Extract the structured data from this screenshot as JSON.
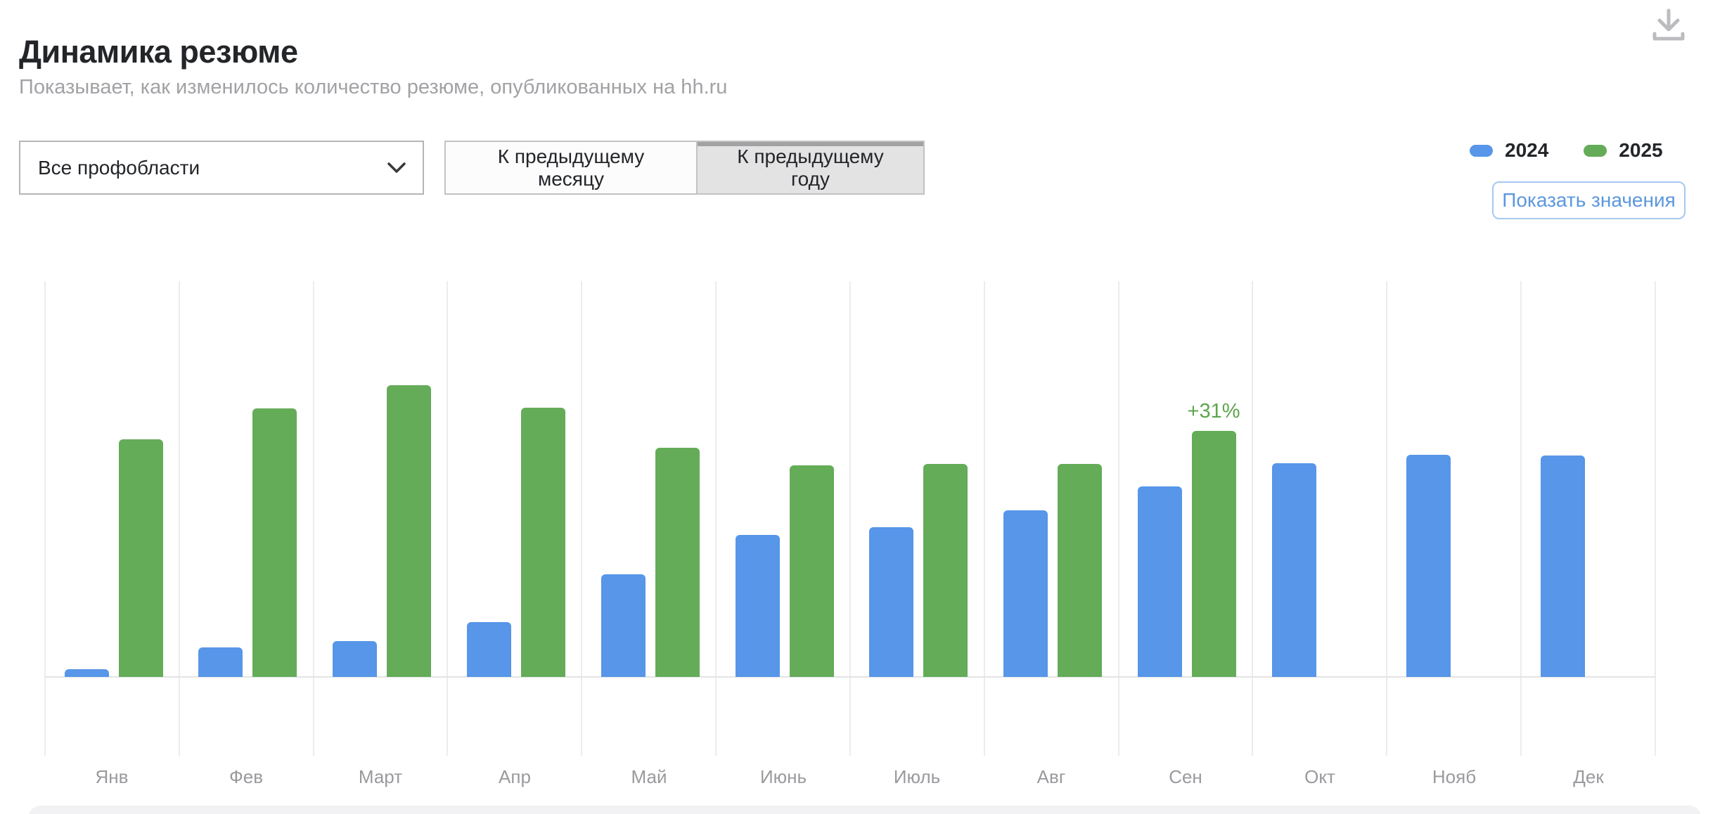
{
  "header": {
    "title": "Динамика резюме",
    "subtitle": "Показывает, как изменилось количество резюме, опубликованных на hh.ru"
  },
  "controls": {
    "profession_filter": {
      "value": "Все профобласти"
    },
    "comparison_toggle": {
      "options": [
        "К предыдущему месяцу",
        "К предыдущему году"
      ],
      "selected": "К предыдущему году"
    },
    "show_values_label": "Показать значения"
  },
  "legend": [
    {
      "label": "2024",
      "color": "#5796e8"
    },
    {
      "label": "2025",
      "color": "#64ac58"
    }
  ],
  "icons": {
    "download": "download-icon",
    "dropdown_chevron": "chevron-down-icon"
  },
  "colors": {
    "bar_2024": "#5796e8",
    "bar_2025": "#64ac58",
    "annotation_green": "#5ea54c",
    "gridline": "#ececee",
    "text_dark": "#232529",
    "text_gray": "#9a9a9e",
    "button_blue": "#5c97de"
  },
  "chart_data": {
    "type": "bar",
    "title": "Динамика резюме",
    "unit": "%",
    "categories": [
      "Янв",
      "Фев",
      "Март",
      "Апр",
      "Май",
      "Июнь",
      "Июль",
      "Авг",
      "Сен",
      "Окт",
      "Нояб",
      "Дек"
    ],
    "series": [
      {
        "name": "2024",
        "color": "#5796e8",
        "values": [
          1.0,
          3.7,
          4.5,
          6.9,
          12.9,
          17.9,
          18.9,
          21.0,
          24.0,
          26.9,
          28.0,
          27.9
        ]
      },
      {
        "name": "2025",
        "color": "#64ac58",
        "values": [
          29.9,
          33.8,
          36.8,
          33.9,
          28.9,
          26.7,
          26.8,
          26.8,
          31.0,
          null,
          null,
          null
        ]
      }
    ],
    "annotations": [
      {
        "series": "2025",
        "category": "Сен",
        "text": "+31%"
      }
    ],
    "ylim": [
      0,
      40
    ],
    "grid": "vertical-only",
    "y_axis_visible": false,
    "legend_position": "top-right"
  }
}
